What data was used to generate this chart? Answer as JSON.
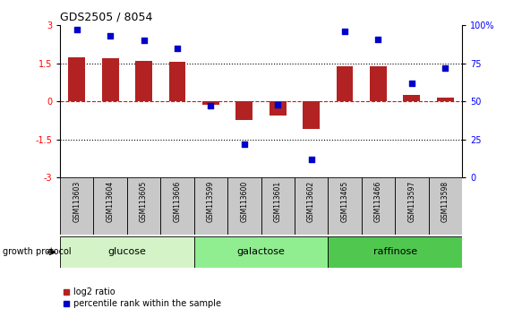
{
  "title": "GDS2505 / 8054",
  "samples": [
    "GSM113603",
    "GSM113604",
    "GSM113605",
    "GSM113606",
    "GSM113599",
    "GSM113600",
    "GSM113601",
    "GSM113602",
    "GSM113465",
    "GSM113466",
    "GSM113597",
    "GSM113598"
  ],
  "log2_ratio": [
    1.75,
    1.7,
    1.6,
    1.55,
    -0.12,
    -0.72,
    -0.55,
    -1.1,
    1.4,
    1.38,
    0.25,
    0.15
  ],
  "percentile_rank": [
    97,
    93,
    90,
    85,
    47,
    22,
    48,
    12,
    96,
    91,
    62,
    72
  ],
  "groups": [
    {
      "label": "glucose",
      "start": 0,
      "end": 4,
      "color": "#d4f4c8"
    },
    {
      "label": "galactose",
      "start": 4,
      "end": 8,
      "color": "#90ee90"
    },
    {
      "label": "raffinose",
      "start": 8,
      "end": 12,
      "color": "#50c850"
    }
  ],
  "bar_color": "#b22222",
  "dot_color": "#0000cc",
  "ylim_left": [
    -3,
    3
  ],
  "ylim_right": [
    0,
    100
  ],
  "yticks_left": [
    -3,
    -1.5,
    0,
    1.5,
    3
  ],
  "yticks_right": [
    0,
    25,
    50,
    75,
    100
  ],
  "hlines": [
    {
      "y": -1.5,
      "style": "dotted",
      "color": "black"
    },
    {
      "y": 0,
      "style": "dashed",
      "color": "red"
    },
    {
      "y": 1.5,
      "style": "dotted",
      "color": "black"
    }
  ],
  "bg_color": "#ffffff",
  "sample_box_color": "#c8c8c8",
  "growth_protocol_label": "growth protocol",
  "legend_items": [
    {
      "label": "log2 ratio",
      "color": "#b22222"
    },
    {
      "label": "percentile rank within the sample",
      "color": "#0000cc"
    }
  ]
}
